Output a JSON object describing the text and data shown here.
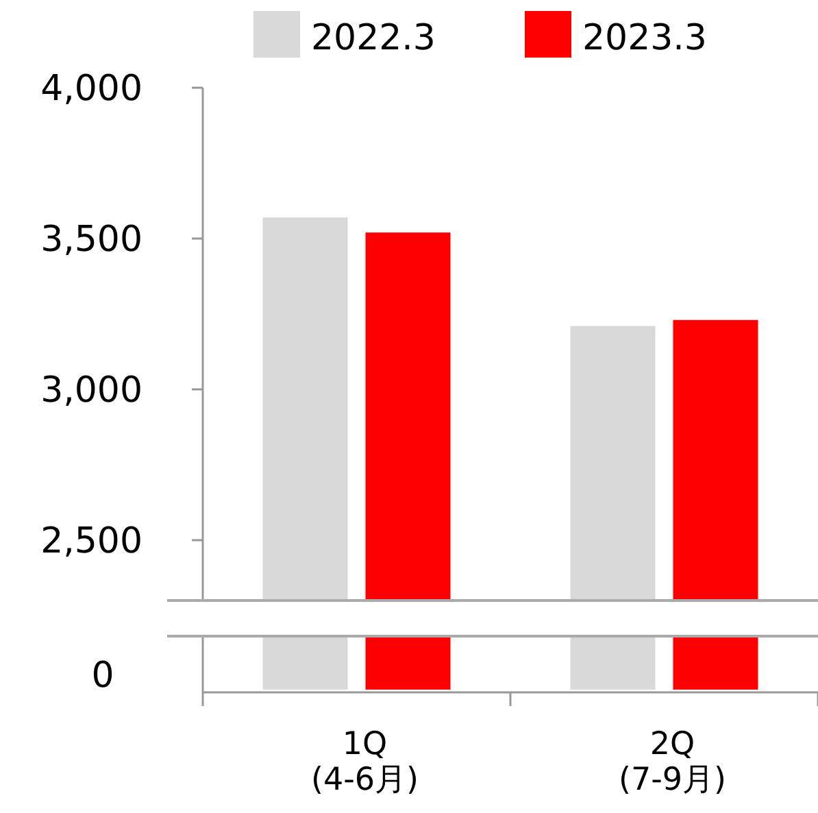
{
  "chart_data": {
    "type": "bar",
    "categories": [
      "1Q\n(4-6月)",
      "2Q\n(7-9月)"
    ],
    "series": [
      {
        "name": "2022.3",
        "color": "#d9d9d9",
        "values": [
          3570,
          3210
        ]
      },
      {
        "name": "2023.3",
        "color": "#ff0000",
        "values": [
          3520,
          3230
        ]
      }
    ],
    "ylim": [
      2300,
      4000
    ],
    "yticks": [
      {
        "value": 2500,
        "label": "2,500"
      },
      {
        "value": 3000,
        "label": "3,000"
      },
      {
        "value": 3500,
        "label": "3,500"
      },
      {
        "value": 4000,
        "label": "4,000"
      }
    ],
    "annotations": [
      "0"
    ],
    "legend": "top"
  }
}
